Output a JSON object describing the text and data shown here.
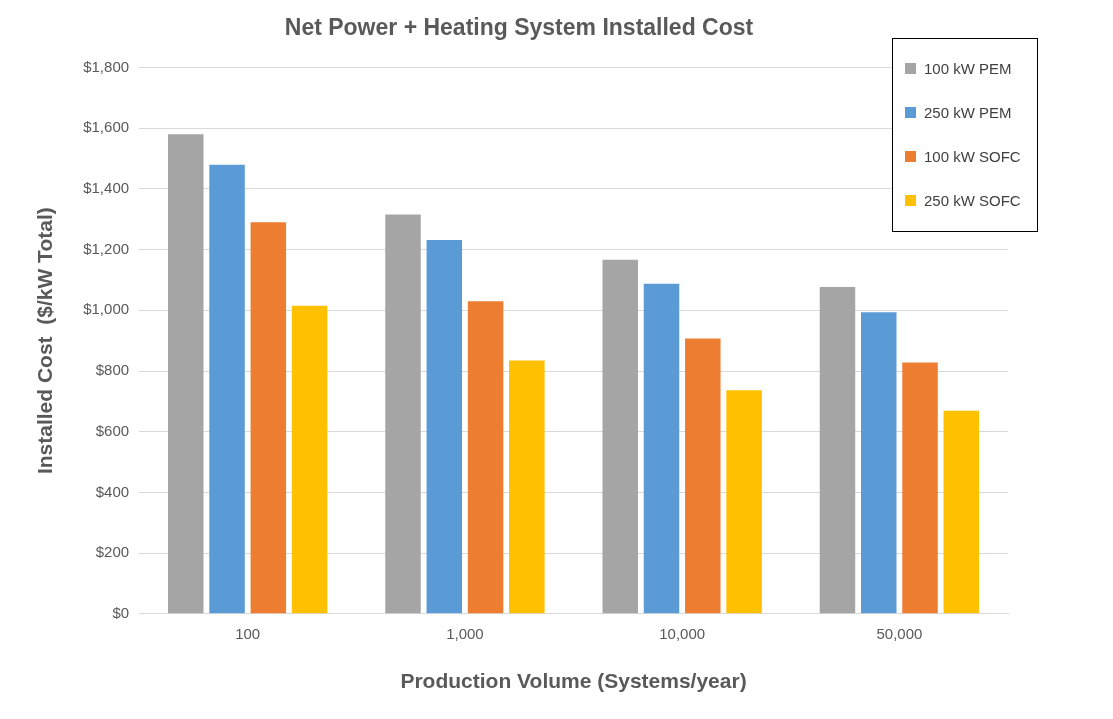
{
  "chart_data": {
    "type": "bar",
    "title": "Net Power + Heating System Installed Cost",
    "xlabel": "Production Volume (Systems/year)",
    "ylabel": "Installed Cost  ($/kW Total)",
    "categories": [
      "100",
      "1,000",
      "10,000",
      "50,000"
    ],
    "series": [
      {
        "name": "100 kW PEM",
        "color": "#a5a5a5",
        "values": [
          1580,
          1316,
          1167,
          1077
        ]
      },
      {
        "name": "250 kW PEM",
        "color": "#5b9bd5",
        "values": [
          1480,
          1232,
          1088,
          994
        ]
      },
      {
        "name": "100 kW SOFC",
        "color": "#ed7d31",
        "values": [
          1290,
          1030,
          907,
          828
        ]
      },
      {
        "name": "250 kW SOFC",
        "color": "#ffc000",
        "values": [
          1015,
          835,
          737,
          669
        ]
      }
    ],
    "ylim": [
      0,
      1800
    ],
    "yticks": [
      {
        "value": 0,
        "label": "$0"
      },
      {
        "value": 200,
        "label": "$200"
      },
      {
        "value": 400,
        "label": "$400"
      },
      {
        "value": 600,
        "label": "$600"
      },
      {
        "value": 800,
        "label": "$800"
      },
      {
        "value": 1000,
        "label": "$1,000"
      },
      {
        "value": 1200,
        "label": "$1,200"
      },
      {
        "value": 1400,
        "label": "$1,400"
      },
      {
        "value": 1600,
        "label": "$1,600"
      },
      {
        "value": 1800,
        "label": "$1,800"
      }
    ],
    "grid": "y",
    "legend": "top right"
  }
}
